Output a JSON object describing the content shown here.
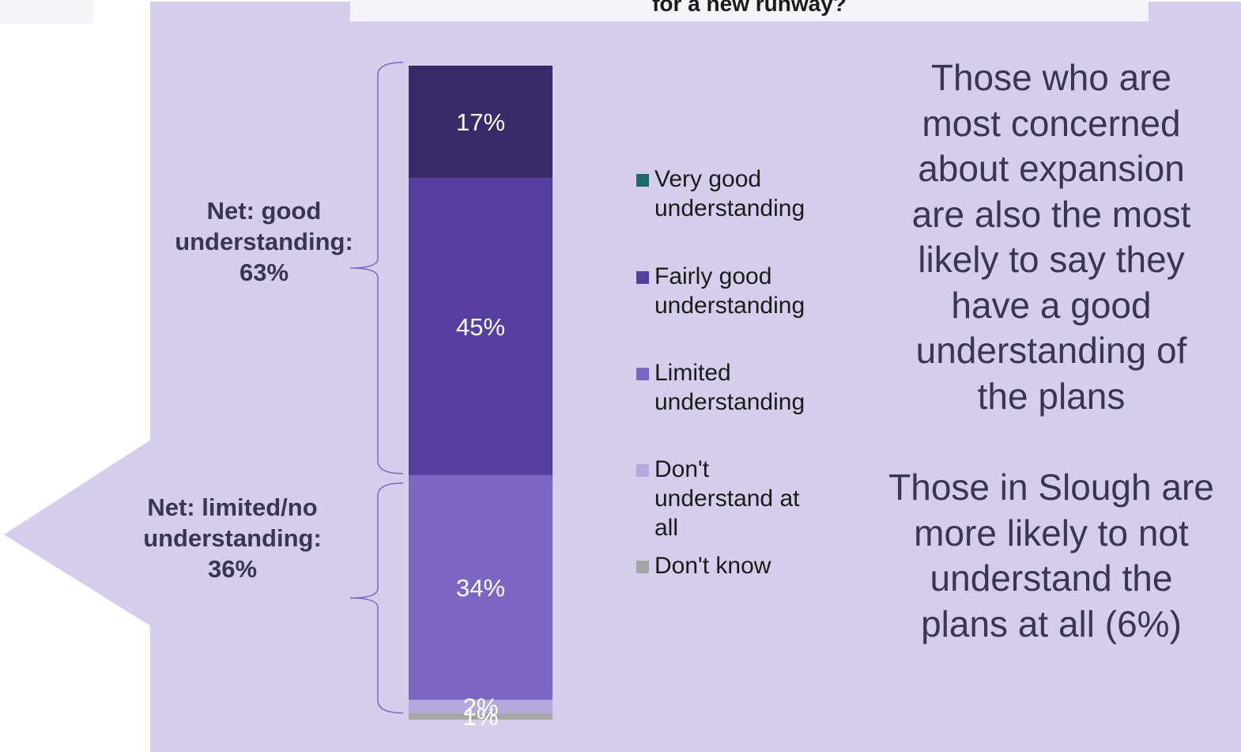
{
  "title": "for a new runway?",
  "chart_data": {
    "type": "bar",
    "stacked": true,
    "orientation": "vertical",
    "categories": [
      ""
    ],
    "ylim": [
      0,
      100
    ],
    "series": [
      {
        "name": "Very good understanding",
        "values": [
          17
        ],
        "label": "17%",
        "color": "#3a2b68"
      },
      {
        "name": "Fairly good understanding",
        "values": [
          45
        ],
        "label": "45%",
        "color": "#553e9e"
      },
      {
        "name": "Limited understanding",
        "values": [
          34
        ],
        "label": "34%",
        "color": "#7d66c2"
      },
      {
        "name": "Don't understand at all",
        "values": [
          2
        ],
        "label": "2%",
        "color": "#b4a8dd"
      },
      {
        "name": "Don't know",
        "values": [
          1
        ],
        "label": "1%",
        "color": "#a6a6a6"
      }
    ],
    "annotations": [
      {
        "lines": [
          "Net: good",
          "understanding:",
          "63%"
        ],
        "spans": "Very good understanding + Fairly good understanding"
      },
      {
        "lines": [
          "Net: limited/no",
          "understanding:",
          "36%"
        ],
        "spans": "Limited understanding + Don't understand at all"
      }
    ]
  },
  "legend": [
    {
      "lines": [
        "Very good",
        "understanding"
      ],
      "color": "#1e6a6a"
    },
    {
      "lines": [
        "Fairly good",
        "understanding"
      ],
      "color": "#553e9e"
    },
    {
      "lines": [
        "Limited",
        "understanding"
      ],
      "color": "#7d66c2"
    },
    {
      "lines": [
        "Don't",
        "understand at",
        "all"
      ],
      "color": "#b4a8dd"
    },
    {
      "lines": [
        "Don't know"
      ],
      "color": "#a6a6a6"
    }
  ],
  "callouts": [
    {
      "lines": [
        "Those who are",
        "most concerned",
        "about expansion",
        "are also the most",
        "likely to say they",
        "have a good",
        "understanding of",
        "the plans"
      ]
    },
    {
      "lines": [
        "Those in Slough are",
        "more likely to not",
        "understand the",
        "plans at all (6%)"
      ]
    }
  ],
  "colors": {
    "panel_background": "#d5cdeb",
    "brace": "#7d66c2",
    "text_dark": "#3a3550",
    "bar_label": "#ffffff"
  }
}
